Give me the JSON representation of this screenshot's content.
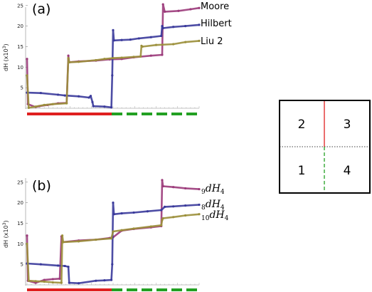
{
  "chart_data": [
    {
      "type": "line",
      "panel_label": "(a)",
      "ylabel": "dH (x10",
      "ylabel_exp": "3",
      "ylabel_close": ")",
      "yticks": [
        5,
        10,
        15,
        20,
        25
      ],
      "ylim": [
        0,
        26
      ],
      "x_range": [
        0,
        1
      ],
      "series": [
        {
          "name": "Moore",
          "color": "#9b3a7a",
          "points": [
            [
              0,
              12
            ],
            [
              0.005,
              1
            ],
            [
              0.05,
              0.3
            ],
            [
              0.07,
              0.5
            ],
            [
              0.12,
              0.8
            ],
            [
              0.18,
              1.2
            ],
            [
              0.23,
              1.3
            ],
            [
              0.24,
              12.8
            ],
            [
              0.245,
              11.2
            ],
            [
              0.3,
              11.4
            ],
            [
              0.4,
              11.6
            ],
            [
              0.48,
              11.9
            ],
            [
              0.55,
              12
            ],
            [
              0.62,
              12.4
            ],
            [
              0.72,
              12.8
            ],
            [
              0.785,
              13
            ],
            [
              0.79,
              25.3
            ],
            [
              0.8,
              23.5
            ],
            [
              0.88,
              23.7
            ],
            [
              0.95,
              24.1
            ],
            [
              1,
              24.4
            ]
          ]
        },
        {
          "name": "Hilbert",
          "color": "#3a3a9b",
          "points": [
            [
              0,
              3.8
            ],
            [
              0.08,
              3.7
            ],
            [
              0.18,
              3.3
            ],
            [
              0.22,
              3.1
            ],
            [
              0.3,
              2.9
            ],
            [
              0.36,
              2.6
            ],
            [
              0.37,
              3
            ],
            [
              0.38,
              1.5
            ],
            [
              0.385,
              0.5
            ],
            [
              0.45,
              0.4
            ],
            [
              0.49,
              0.2
            ],
            [
              0.495,
              8
            ],
            [
              0.5,
              19
            ],
            [
              0.505,
              16.5
            ],
            [
              0.55,
              16.6
            ],
            [
              0.6,
              16.7
            ],
            [
              0.65,
              17
            ],
            [
              0.72,
              17.3
            ],
            [
              0.78,
              17.6
            ],
            [
              0.785,
              20
            ],
            [
              0.79,
              19.5
            ],
            [
              0.85,
              19.8
            ],
            [
              0.92,
              20
            ],
            [
              1,
              20.3
            ]
          ]
        },
        {
          "name": "Liu 2",
          "color": "#9b8f3a",
          "points": [
            [
              0,
              8
            ],
            [
              0.01,
              0.1
            ],
            [
              0.05,
              0.4
            ],
            [
              0.1,
              0.8
            ],
            [
              0.15,
              1
            ],
            [
              0.23,
              1.2
            ],
            [
              0.24,
              12.2
            ],
            [
              0.245,
              11.2
            ],
            [
              0.3,
              11.3
            ],
            [
              0.4,
              11.7
            ],
            [
              0.45,
              12
            ],
            [
              0.5,
              12.2
            ],
            [
              0.55,
              12.3
            ],
            [
              0.62,
              12.5
            ],
            [
              0.66,
              12.6
            ],
            [
              0.665,
              15.2
            ],
            [
              0.67,
              15
            ],
            [
              0.75,
              15.4
            ],
            [
              0.85,
              15.6
            ],
            [
              0.92,
              16.1
            ],
            [
              1,
              16.4
            ]
          ]
        }
      ],
      "legend": [
        {
          "text": "Moore"
        },
        {
          "text": "Hilbert"
        },
        {
          "text": "Liu 2"
        }
      ]
    },
    {
      "type": "line",
      "panel_label": "(b)",
      "ylabel": "dH (x10",
      "ylabel_exp": "3",
      "ylabel_close": ")",
      "yticks": [
        5,
        10,
        15,
        20,
        25
      ],
      "ylim": [
        0,
        26
      ],
      "x_range": [
        0,
        1
      ],
      "series": [
        {
          "name": "9dH4",
          "color": "#9b3a7a",
          "points": [
            [
              0,
              12
            ],
            [
              0.005,
              1
            ],
            [
              0.05,
              0.5
            ],
            [
              0.1,
              1.2
            ],
            [
              0.15,
              1.4
            ],
            [
              0.19,
              1.5
            ],
            [
              0.2,
              11.8
            ],
            [
              0.205,
              10.4
            ],
            [
              0.3,
              10.8
            ],
            [
              0.4,
              11
            ],
            [
              0.48,
              11.4
            ],
            [
              0.5,
              11.6
            ],
            [
              0.55,
              13.2
            ],
            [
              0.62,
              13.6
            ],
            [
              0.72,
              14
            ],
            [
              0.78,
              14.3
            ],
            [
              0.785,
              25.5
            ],
            [
              0.79,
              24
            ],
            [
              0.85,
              23.8
            ],
            [
              0.92,
              23.5
            ],
            [
              1,
              23.3
            ]
          ]
        },
        {
          "name": "8dH4",
          "color": "#3a3a9b",
          "points": [
            [
              0,
              5.2
            ],
            [
              0.08,
              5
            ],
            [
              0.18,
              4.7
            ],
            [
              0.22,
              4.6
            ],
            [
              0.24,
              4.4
            ],
            [
              0.245,
              0.5
            ],
            [
              0.3,
              0.4
            ],
            [
              0.4,
              1
            ],
            [
              0.45,
              1.1
            ],
            [
              0.49,
              1.2
            ],
            [
              0.495,
              5
            ],
            [
              0.5,
              20
            ],
            [
              0.505,
              17.2
            ],
            [
              0.55,
              17.4
            ],
            [
              0.62,
              17.6
            ],
            [
              0.7,
              17.9
            ],
            [
              0.78,
              18.2
            ],
            [
              0.8,
              19
            ],
            [
              0.85,
              19.1
            ],
            [
              0.92,
              19.3
            ],
            [
              1,
              19.5
            ]
          ]
        },
        {
          "name": "10dH4",
          "color": "#9b8f3a",
          "points": [
            [
              0,
              10
            ],
            [
              0.01,
              1
            ],
            [
              0.05,
              0.9
            ],
            [
              0.1,
              0.8
            ],
            [
              0.15,
              0.6
            ],
            [
              0.2,
              0.5
            ],
            [
              0.205,
              12
            ],
            [
              0.21,
              10.4
            ],
            [
              0.3,
              10.6
            ],
            [
              0.4,
              11
            ],
            [
              0.49,
              11.3
            ],
            [
              0.5,
              13
            ],
            [
              0.55,
              13.3
            ],
            [
              0.62,
              13.7
            ],
            [
              0.72,
              14.2
            ],
            [
              0.78,
              14.5
            ],
            [
              0.785,
              15.8
            ],
            [
              0.79,
              16.2
            ],
            [
              0.85,
              16.5
            ],
            [
              0.92,
              16.9
            ],
            [
              1,
              17.2
            ]
          ]
        }
      ],
      "legend": [
        {
          "pre": "9",
          "main": "dH",
          "subscript": "4"
        },
        {
          "pre": "8",
          "main": "dH",
          "subscript": "4"
        },
        {
          "pre": "10",
          "main": "dH",
          "subscript": "4"
        }
      ]
    }
  ],
  "quadrant_diagram": {
    "labels": [
      "2",
      "3",
      "1",
      "4"
    ]
  },
  "colors": {
    "solid_bar": "#e02020",
    "dashed_bar": "#22a022",
    "grid_frame": "#000000"
  }
}
